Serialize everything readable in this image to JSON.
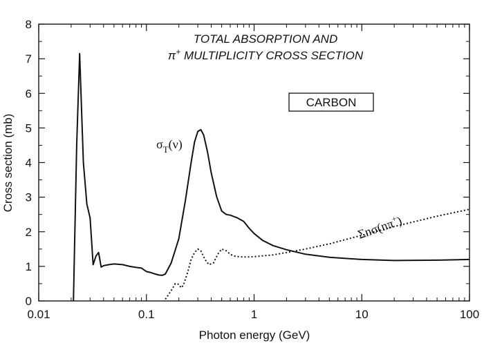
{
  "chart_data": {
    "type": "line",
    "title_line1": "TOTAL ABSORPTION AND",
    "title_line2_prefix": "π",
    "title_line2_sup": "+",
    "title_line2_rest": " MULTIPLICITY CROSS SECTION",
    "xlabel": "Photon energy (GeV)",
    "ylabel": "Cross section (mb)",
    "x_scale": "log",
    "xlim": [
      0.01,
      100
    ],
    "ylim": [
      0,
      8
    ],
    "x_ticks": [
      0.01,
      0.1,
      1,
      10,
      100
    ],
    "x_tick_labels": [
      "0.01",
      "0.1",
      "1",
      "10",
      "100"
    ],
    "y_ticks": [
      0,
      1,
      2,
      3,
      4,
      5,
      6,
      7,
      8
    ],
    "y_tick_labels": [
      "0",
      "1",
      "2",
      "3",
      "4",
      "5",
      "6",
      "7",
      "8"
    ],
    "grid": false,
    "box_label": "CARBON",
    "series": [
      {
        "label_main": "σ",
        "label_sub": "T",
        "label_rest": "(ν)",
        "style": "solid",
        "x": [
          0.021,
          0.0225,
          0.024,
          0.025,
          0.026,
          0.028,
          0.03,
          0.032,
          0.034,
          0.036,
          0.038,
          0.04,
          0.045,
          0.05,
          0.06,
          0.07,
          0.08,
          0.09,
          0.1,
          0.11,
          0.12,
          0.13,
          0.14,
          0.15,
          0.17,
          0.2,
          0.23,
          0.26,
          0.28,
          0.3,
          0.32,
          0.34,
          0.37,
          0.4,
          0.45,
          0.5,
          0.55,
          0.6,
          0.7,
          0.8,
          0.9,
          1.0,
          1.2,
          1.5,
          2.0,
          3.0,
          5.0,
          10.0,
          20.0,
          50.0,
          100.0
        ],
        "y": [
          0,
          4.5,
          7.15,
          5.5,
          4.0,
          2.8,
          2.4,
          1.05,
          1.3,
          1.4,
          0.98,
          1.02,
          1.05,
          1.07,
          1.05,
          1.0,
          0.97,
          0.95,
          0.85,
          0.82,
          0.78,
          0.75,
          0.74,
          0.78,
          1.1,
          1.8,
          2.9,
          4.0,
          4.6,
          4.9,
          4.95,
          4.8,
          4.3,
          3.7,
          3.0,
          2.6,
          2.5,
          2.48,
          2.4,
          2.3,
          2.1,
          1.95,
          1.75,
          1.6,
          1.48,
          1.35,
          1.26,
          1.2,
          1.17,
          1.18,
          1.2
        ]
      },
      {
        "label_main": "Σnσ(nπ",
        "label_sup": "+",
        "label_rest": ")",
        "style": "dotted",
        "x": [
          0.15,
          0.17,
          0.185,
          0.2,
          0.21,
          0.22,
          0.24,
          0.26,
          0.28,
          0.3,
          0.32,
          0.35,
          0.38,
          0.42,
          0.46,
          0.5,
          0.55,
          0.6,
          0.65,
          0.7,
          0.8,
          0.9,
          1.0,
          1.5,
          2.0,
          3.0,
          5.0,
          10.0,
          20.0,
          50.0,
          100.0
        ],
        "y": [
          0.05,
          0.3,
          0.5,
          0.48,
          0.38,
          0.45,
          0.8,
          1.2,
          1.4,
          1.5,
          1.45,
          1.2,
          1.05,
          1.1,
          1.35,
          1.5,
          1.45,
          1.35,
          1.3,
          1.28,
          1.27,
          1.27,
          1.28,
          1.33,
          1.4,
          1.5,
          1.65,
          1.9,
          2.15,
          2.45,
          2.65
        ]
      }
    ]
  }
}
